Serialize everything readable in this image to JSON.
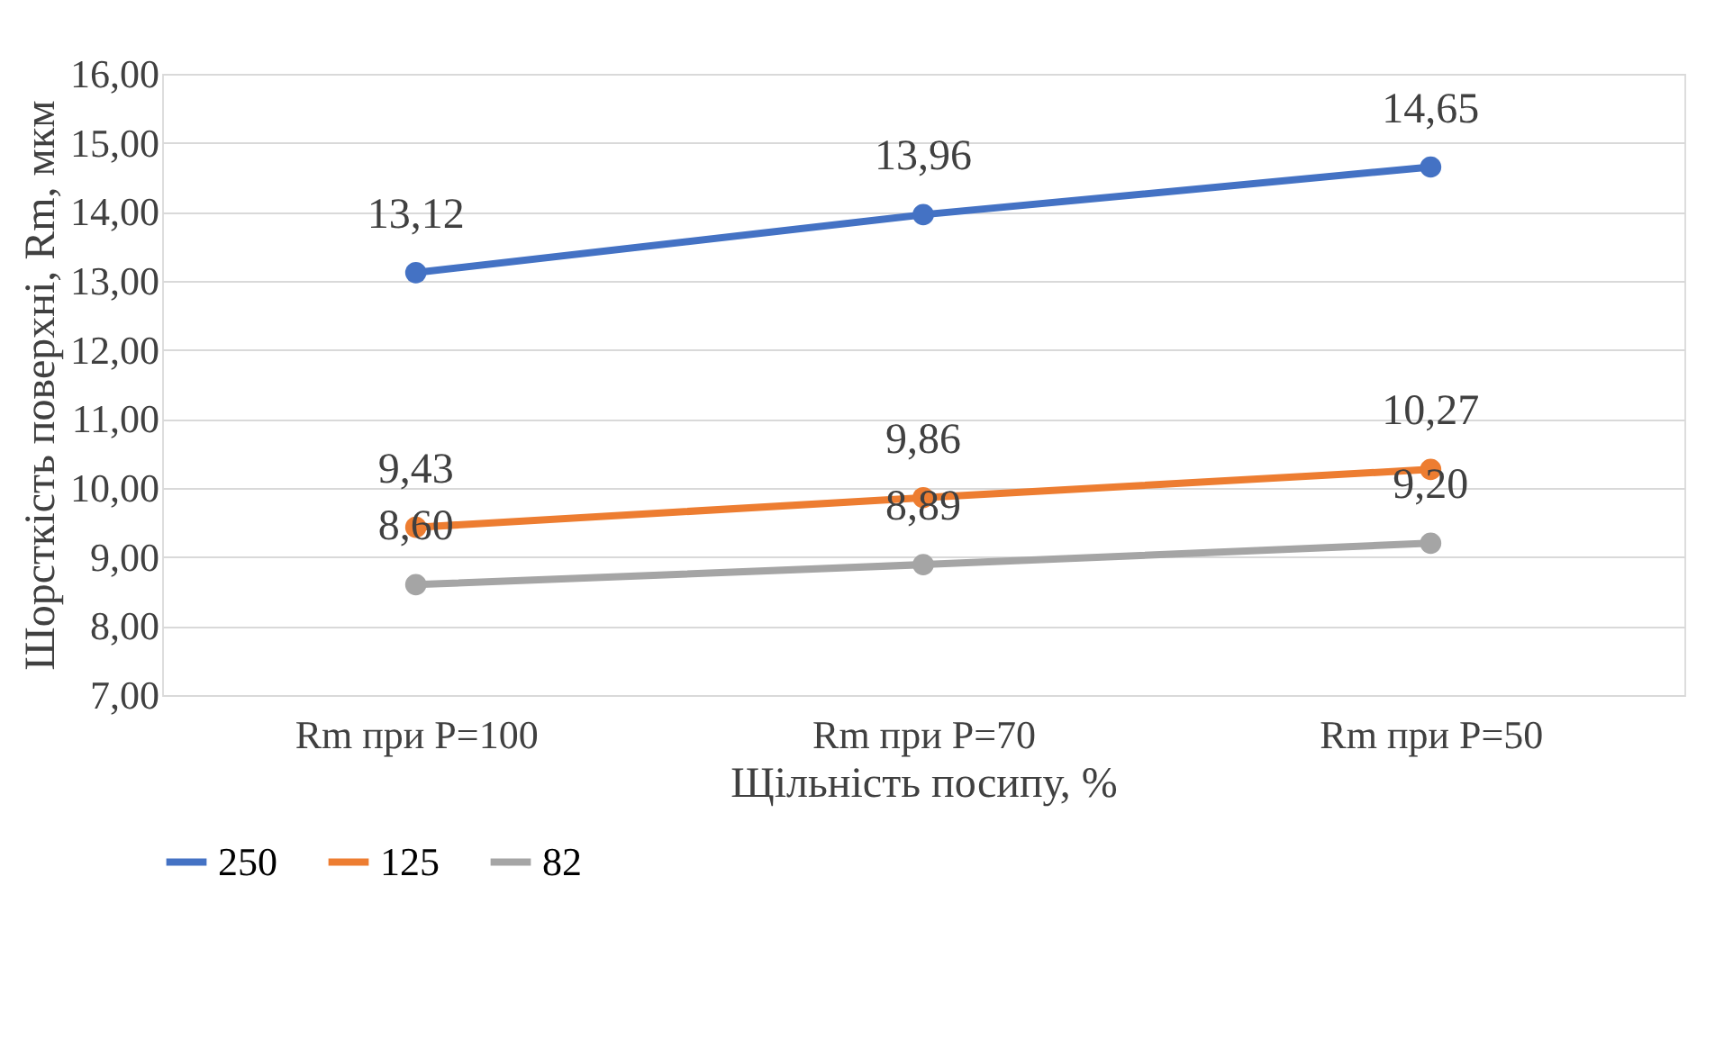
{
  "chart_data": {
    "type": "line",
    "xlabel": "Щільність посипу, %",
    "ylabel": "Шорсткість поверхні, Rm, мкм",
    "categories": [
      "Rm при P=100",
      "Rm при P=70",
      "Rm при P=50"
    ],
    "series": [
      {
        "name": "250",
        "color": "#4472c4",
        "values": [
          13.12,
          13.96,
          14.65
        ],
        "value_labels": [
          "13,12",
          "13,96",
          "14,65"
        ]
      },
      {
        "name": "125",
        "color": "#ed7d31",
        "values": [
          9.43,
          9.86,
          10.27
        ],
        "value_labels": [
          "9,43",
          "9,86",
          "10,27"
        ]
      },
      {
        "name": "82",
        "color": "#a5a5a5",
        "values": [
          8.6,
          8.89,
          9.2
        ],
        "value_labels": [
          "8,60",
          "8,89",
          "9,20"
        ]
      }
    ],
    "ylim": [
      7,
      16
    ],
    "yticks": [
      {
        "value": 7,
        "label": "7,00"
      },
      {
        "value": 8,
        "label": "8,00"
      },
      {
        "value": 9,
        "label": "9,00"
      },
      {
        "value": 10,
        "label": "10,00"
      },
      {
        "value": 11,
        "label": "11,00"
      },
      {
        "value": 12,
        "label": "12,00"
      },
      {
        "value": 13,
        "label": "13,00"
      },
      {
        "value": 14,
        "label": "14,00"
      },
      {
        "value": 15,
        "label": "15,00"
      },
      {
        "value": 16,
        "label": "16,00"
      }
    ],
    "grid": "y",
    "legend": "bottom",
    "marker": "circle",
    "line_style": "solid"
  }
}
